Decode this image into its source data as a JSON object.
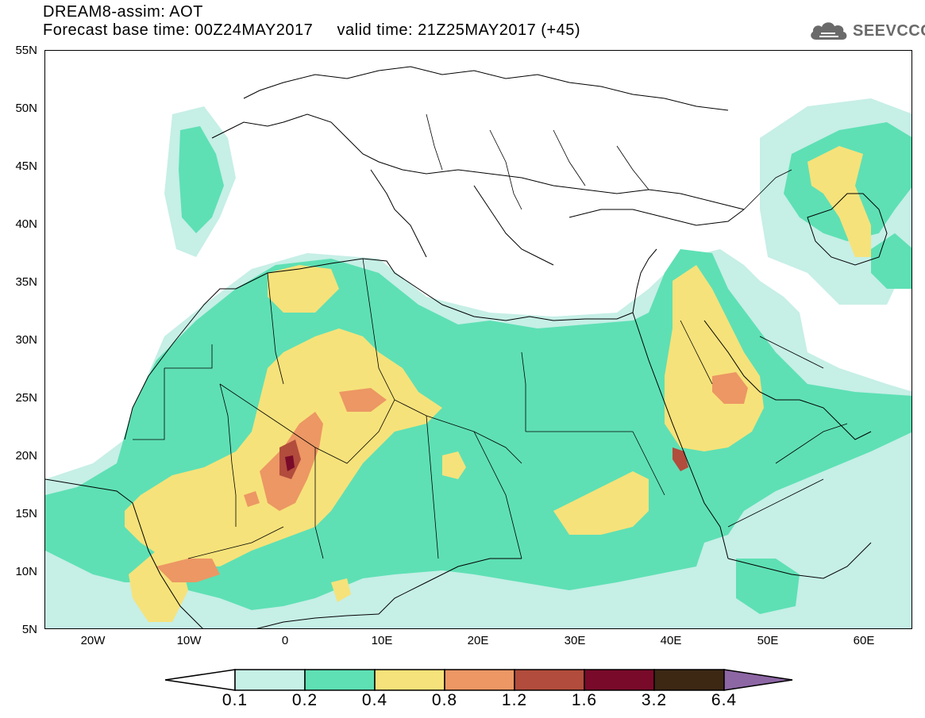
{
  "header": {
    "title_line1": "DREAM8-assim: AOT",
    "base_label": "Forecast base time: 00Z24MAY2017",
    "valid_label": "valid time: 21Z25MAY2017 (+45)"
  },
  "logo": {
    "icon": "cloud-icon",
    "text": "SEEVCCC",
    "color": "#6a6a6a"
  },
  "map": {
    "projection": "lat-lon",
    "lon_range": [
      -25,
      65
    ],
    "lat_range": [
      5,
      55
    ],
    "latitude_labels": [
      "55N",
      "50N",
      "45N",
      "40N",
      "35N",
      "30N",
      "25N",
      "20N",
      "15N",
      "10N",
      "5N"
    ],
    "longitude_labels": [
      "20W",
      "10W",
      "0",
      "10E",
      "20E",
      "30E",
      "40E",
      "50E",
      "60E"
    ]
  },
  "legend": {
    "labels": [
      "0.1",
      "0.2",
      "0.4",
      "0.8",
      "1.2",
      "1.6",
      "3.2",
      "6.4"
    ],
    "colors": [
      "#ffffff",
      "#c6efe6",
      "#5ee0b4",
      "#f6e27a",
      "#ec9764",
      "#b24c3c",
      "#7a0a2a",
      "#3d2814",
      "#8d66a4"
    ]
  }
}
